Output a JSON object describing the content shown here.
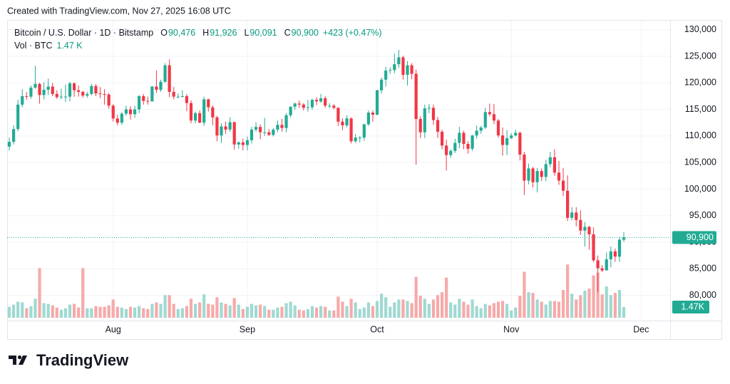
{
  "created": "Created with TradingView.com, Nov 27, 2025 16:08 UTC",
  "branding": "TradingView",
  "chart_data": {
    "type": "candlestick",
    "legend": {
      "symbol": "Bitcoin / U.S. Dollar · 1D · Bitstamp",
      "ohlc": [
        {
          "key": "O",
          "value": "90,476"
        },
        {
          "key": "H",
          "value": "91,926"
        },
        {
          "key": "L",
          "value": "90,091"
        },
        {
          "key": "C",
          "value": "90,900"
        }
      ],
      "change": "+423 (+0.47%)",
      "volume_key": "Vol · BTC",
      "volume": "1.47 K"
    },
    "up_color": "#22ab94",
    "down_color": "#f23645",
    "up_volume_color": "#9fd9d2",
    "down_volume_color": "#f7a9a9",
    "grid": true,
    "xlim": [
      -0.5,
      152.7
    ],
    "xticks": [
      {
        "value": 24,
        "label": "Aug"
      },
      {
        "value": 55,
        "label": "Sep"
      },
      {
        "value": 85,
        "label": "Oct"
      },
      {
        "value": 116,
        "label": "Nov"
      },
      {
        "value": 146,
        "label": "Dec"
      }
    ],
    "ylim": [
      75800,
      132100
    ],
    "yticks": [
      {
        "value": 80000,
        "label": "80,000"
      },
      {
        "value": 85000,
        "label": "85,000"
      },
      {
        "value": 90000,
        "label": "90,000"
      },
      {
        "value": 95000,
        "label": "95,000"
      },
      {
        "value": 100000,
        "label": "100,000"
      },
      {
        "value": 105000,
        "label": "105,000"
      },
      {
        "value": 110000,
        "label": "110,000"
      },
      {
        "value": 115000,
        "label": "115,000"
      },
      {
        "value": 120000,
        "label": "120,000"
      },
      {
        "value": 125000,
        "label": "125,000"
      },
      {
        "value": 130000,
        "label": "130,000"
      }
    ],
    "y2lim": [
      0,
      41000
    ],
    "price_label": "90,900",
    "volume_label": "1.47K",
    "open": [
      108000,
      108900,
      111300,
      115900,
      117500,
      117400,
      119100,
      119800,
      117700,
      118700,
      119300,
      117900,
      117300,
      117400,
      117400,
      119900,
      118600,
      118300,
      117600,
      117900,
      119400,
      118000,
      117900,
      117800,
      115700,
      113300,
      112500,
      114200,
      115000,
      114100,
      115000,
      117500,
      116600,
      116500,
      119300,
      118700,
      120200,
      123300,
      118300,
      117400,
      117400,
      117500,
      116200,
      112900,
      114300,
      112500,
      116900,
      115400,
      113500,
      110100,
      111800,
      111200,
      112600,
      108400,
      108800,
      108300,
      109200,
      111200,
      111700,
      110700,
      110700,
      110200,
      111200,
      112100,
      111500,
      113900,
      115500,
      116100,
      115900,
      115300,
      115400,
      116800,
      116500,
      117100,
      115700,
      115700,
      115300,
      112700,
      112000,
      113300,
      109000,
      109700,
      109700,
      112200,
      114400,
      114000,
      118600,
      120600,
      122300,
      122400,
      123500,
      124800,
      121500,
      123300,
      121700,
      113200,
      110700,
      115200,
      115300,
      113000,
      110800,
      108200,
      106400,
      107200,
      108700,
      110600,
      108500,
      107600,
      110100,
      111000,
      111600,
      114500,
      114100,
      112900,
      110100,
      108300,
      109600,
      110100,
      110600,
      106500,
      101600,
      103900,
      101300,
      103400,
      102300,
      104700,
      106000,
      103100,
      101600,
      99700,
      94600,
      95600,
      94200,
      92200,
      92900,
      91500,
      86600,
      85100,
      84700,
      86800,
      88300,
      87300,
      90476
    ],
    "high": [
      109700,
      112000,
      116800,
      118800,
      118300,
      119500,
      123200,
      120000,
      120100,
      120800,
      120000,
      118600,
      118900,
      119700,
      120200,
      120100,
      119500,
      118500,
      118300,
      119800,
      119800,
      119200,
      118800,
      118100,
      116000,
      114000,
      114500,
      115700,
      115600,
      115700,
      117700,
      117900,
      117400,
      119400,
      122300,
      120600,
      123700,
      124400,
      119200,
      118000,
      118600,
      117900,
      116700,
      114600,
      114800,
      117400,
      117000,
      115800,
      113800,
      112400,
      112700,
      113500,
      112700,
      109000,
      109500,
      109900,
      111700,
      112600,
      112200,
      113400,
      111300,
      111500,
      112900,
      113200,
      114300,
      115600,
      116300,
      116700,
      116200,
      116800,
      117000,
      117300,
      117900,
      117500,
      116200,
      116000,
      115400,
      113300,
      113900,
      113500,
      110400,
      110000,
      112300,
      114800,
      114800,
      118700,
      121000,
      123000,
      122900,
      125500,
      126200,
      125100,
      124100,
      123700,
      122500,
      113700,
      115900,
      116000,
      115900,
      113600,
      111200,
      109300,
      107500,
      109500,
      111700,
      111000,
      109000,
      110200,
      112000,
      111900,
      115300,
      116100,
      116000,
      113200,
      111600,
      111100,
      110500,
      111200,
      110800,
      107000,
      104800,
      104200,
      104000,
      103900,
      105500,
      107000,
      107500,
      105300,
      104000,
      102600,
      96600,
      96600,
      96000,
      93800,
      93100,
      92800,
      87500,
      85700,
      88100,
      89200,
      88800,
      91000,
      91926
    ],
    "low": [
      107300,
      108400,
      110900,
      115400,
      116800,
      117000,
      118900,
      116100,
      116900,
      117700,
      117500,
      117000,
      116900,
      116400,
      116500,
      117400,
      117400,
      117200,
      117200,
      117700,
      117500,
      117100,
      115900,
      115100,
      112700,
      112000,
      112100,
      113800,
      113100,
      113400,
      114300,
      115900,
      115900,
      116500,
      118100,
      118300,
      120000,
      117300,
      116900,
      117100,
      117200,
      114700,
      112400,
      112400,
      112400,
      111900,
      114600,
      112000,
      109000,
      108700,
      110400,
      110800,
      107400,
      107600,
      107300,
      107300,
      108600,
      110800,
      109400,
      110000,
      110000,
      109900,
      110700,
      110800,
      110700,
      113500,
      114900,
      115300,
      114800,
      114600,
      114900,
      115800,
      116200,
      115300,
      115200,
      115000,
      111900,
      111100,
      111600,
      108600,
      108700,
      108800,
      109100,
      111900,
      112700,
      113900,
      118000,
      119300,
      121700,
      121800,
      122800,
      120600,
      119500,
      120700,
      104600,
      109600,
      109600,
      114300,
      112100,
      109600,
      107500,
      103500,
      105900,
      106800,
      107700,
      107500,
      106700,
      107200,
      109500,
      110400,
      111300,
      113700,
      112200,
      109700,
      106300,
      106400,
      109400,
      109900,
      105400,
      98900,
      100900,
      100300,
      99400,
      101500,
      101500,
      104100,
      102500,
      100800,
      98700,
      94000,
      94100,
      93000,
      91400,
      89200,
      88600,
      86300,
      80600,
      84400,
      84700,
      85300,
      86300,
      86300,
      90091
    ],
    "close": [
      108900,
      111300,
      115900,
      117500,
      117400,
      119100,
      119800,
      117700,
      118700,
      119300,
      117900,
      117300,
      117400,
      117400,
      119900,
      118600,
      118300,
      117600,
      117900,
      119400,
      118000,
      117900,
      117800,
      115700,
      113300,
      112500,
      114200,
      115000,
      114100,
      115000,
      117500,
      116600,
      116500,
      119300,
      118700,
      120200,
      123300,
      118300,
      117400,
      117400,
      117500,
      116200,
      112900,
      114300,
      112500,
      116900,
      115400,
      113500,
      110100,
      111800,
      111200,
      112600,
      108400,
      108800,
      108300,
      109200,
      111200,
      111700,
      110700,
      110700,
      110200,
      111200,
      112100,
      111500,
      113900,
      115500,
      116100,
      115900,
      115300,
      115400,
      116800,
      116500,
      117100,
      115700,
      115700,
      115300,
      112700,
      112000,
      113300,
      109000,
      109700,
      109700,
      112200,
      114400,
      114000,
      118600,
      120600,
      122300,
      122400,
      123500,
      124800,
      121500,
      123300,
      121700,
      113200,
      110700,
      115200,
      115300,
      113000,
      110800,
      108200,
      106400,
      107200,
      108700,
      110600,
      108500,
      107600,
      110100,
      111000,
      111600,
      114500,
      114100,
      112900,
      110100,
      108300,
      109600,
      110100,
      110600,
      106500,
      101600,
      103900,
      101300,
      103400,
      102300,
      104700,
      106000,
      103100,
      101600,
      99700,
      94600,
      95600,
      94200,
      92200,
      92900,
      91500,
      86600,
      85100,
      84700,
      86800,
      88300,
      87300,
      90477,
      90900
    ],
    "volume": [
      1500,
      1800,
      2200,
      2100,
      1300,
      1600,
      2600,
      6800,
      2000,
      1900,
      1700,
      1400,
      1100,
      1300,
      1800,
      1900,
      1400,
      6800,
      1300,
      1300,
      1600,
      1500,
      1500,
      1700,
      2500,
      1500,
      1400,
      1200,
      1500,
      1400,
      1600,
      1300,
      1200,
      1900,
      2100,
      1900,
      3100,
      3100,
      1900,
      1200,
      1300,
      1600,
      2600,
      1900,
      2100,
      3200,
      1900,
      1800,
      2800,
      2100,
      1900,
      1700,
      2700,
      1800,
      1200,
      1500,
      1900,
      1700,
      1800,
      1600,
      1100,
      1100,
      1400,
      1500,
      2000,
      2200,
      1700,
      1100,
      1000,
      1200,
      1600,
      1400,
      1600,
      1500,
      1000,
      1000,
      2900,
      2200,
      1600,
      2600,
      2100,
      1200,
      1400,
      2100,
      1600,
      2300,
      3300,
      2800,
      1500,
      2100,
      2500,
      2500,
      2300,
      2000,
      5600,
      3000,
      2600,
      1900,
      2500,
      3100,
      3500,
      5500,
      2100,
      1800,
      2600,
      2200,
      1800,
      2500,
      1600,
      1300,
      1900,
      1700,
      2000,
      2200,
      2300,
      1900,
      1000,
      1400,
      3000,
      6300,
      3500,
      3400,
      2500,
      2200,
      1800,
      2300,
      2300,
      2200,
      3800,
      7300,
      3300,
      2500,
      3100,
      3700,
      4000,
      5800,
      6200,
      3200,
      4300,
      3100,
      3400,
      3800,
      1470
    ]
  }
}
